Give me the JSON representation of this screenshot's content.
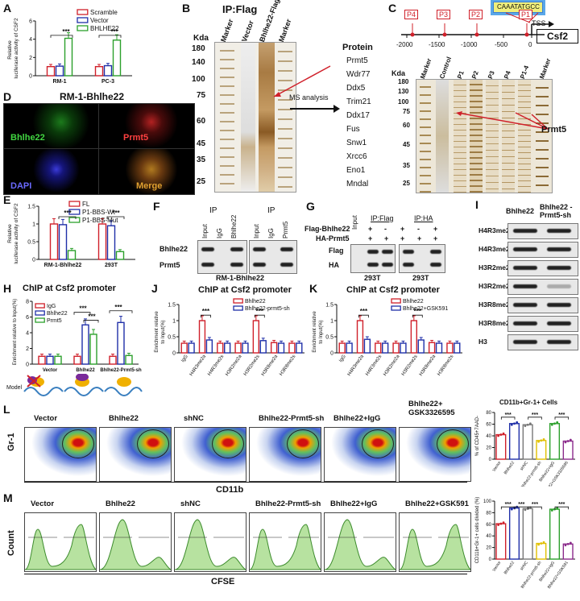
{
  "panels": {
    "A": {
      "label": "A",
      "ylabel": "Relative luciferase activity of CSF2",
      "legend": [
        "Scramble",
        "Vector",
        "BHLHE22"
      ],
      "groups": [
        "RM-1",
        "PC-3"
      ],
      "sig": [
        "***",
        "***"
      ]
    },
    "B": {
      "label": "B",
      "title": "IP:Flag",
      "kda": "Kda",
      "markers": [
        "180",
        "140",
        "100",
        "75",
        "60",
        "45",
        "35",
        "25"
      ],
      "lanes": [
        "Marker",
        "Vector",
        "Bhlhe22-Flag",
        "Marker"
      ],
      "ms": "MS analysis",
      "protein_header": "Protein",
      "proteins": [
        "Prmt5",
        "Wdr77",
        "Ddx5",
        "Trim21",
        "Ddx17",
        "Fus",
        "Snw1",
        "Xrcc6",
        "Eno1",
        "Mndal"
      ]
    },
    "C": {
      "label": "C",
      "motif": "CAAATATGCC",
      "tss": "TSS",
      "gene": "Csf2",
      "promoters": [
        "P4",
        "P3",
        "P2",
        "P1"
      ],
      "axis": [
        "-2000",
        "-1500",
        "-1000",
        "-500",
        "0"
      ],
      "kda": "Kda",
      "lanes": [
        "Marker",
        "Control",
        "P1",
        "P2",
        "P3",
        "P4",
        "P1-4",
        "Marker"
      ],
      "markers": [
        "180",
        "130",
        "100",
        "75",
        "60",
        "45",
        "35",
        "25"
      ],
      "arrow_label": "Prmt5"
    },
    "D": {
      "label": "D",
      "title": "RM-1-Bhlhe22",
      "quads": [
        "Bhlhe22",
        "Prmt5",
        "DAPI",
        "Merge"
      ]
    },
    "E": {
      "label": "E",
      "ylabel": "Relative luciferase activity of CSF2",
      "legend": [
        "FL",
        "P1-BBS-Wt",
        "P1-BBS-Mut"
      ],
      "groups": [
        "RM-1-Bhlhe22",
        "293T"
      ],
      "sig": [
        "***",
        "***"
      ]
    },
    "F": {
      "label": "F",
      "ip": [
        "IP",
        "IP"
      ],
      "lanes": [
        "Input",
        "IgG",
        "Bhlhe22",
        "Input",
        "IgG",
        "Prmt5"
      ],
      "rows": [
        "Bhlhe22",
        "Prmt5"
      ],
      "caption": "RM-1-Bhlhe22"
    },
    "G": {
      "label": "G",
      "rows": [
        "Flag-Bhlhe22",
        "HA-Prmt5",
        "Flag",
        "HA"
      ],
      "ip": [
        "Input",
        "IP:Flag",
        "IP:HA"
      ],
      "signs": [
        "+",
        "+",
        "-",
        "+",
        "+",
        "+",
        "+",
        "+",
        "+"
      ],
      "caption": [
        "293T",
        "293T"
      ]
    },
    "H": {
      "label": "H",
      "title": "ChIP at Csf2 promoter",
      "ylabel": "Enrichment relative to Input(%)",
      "legend": [
        "IgG",
        "Bhlhe22",
        "Prmt5"
      ],
      "groups": [
        "Vector",
        "Bhlhe22",
        "Bhlhe22-Prmt5-sh"
      ],
      "model": "Model"
    },
    "I": {
      "label": "I",
      "cols": [
        "Bhlhe22",
        "Bhlhe22 -Prmt5-sh"
      ],
      "rows": [
        "H4R3me2a",
        "H4R3me2s",
        "H3R2me2a",
        "H3R2me2s",
        "H3R8me2a",
        "H3R8me2s",
        "H3"
      ]
    },
    "J": {
      "label": "J",
      "title": "ChIP at Csf2 promoter",
      "ylabel": "Enrichment relative to Input(%)",
      "legend": [
        "Bhlhe22",
        "Bhlhe22-prmt5-sh"
      ],
      "cats": [
        "IgG",
        "H4R3me2a",
        "H4R3me2s",
        "H3R2me2a",
        "H3R2me2s",
        "H3R8me2a",
        "H3R8me2s"
      ],
      "sig": [
        "***",
        "***"
      ]
    },
    "K": {
      "label": "K",
      "title": "ChIP at Csf2 promoter",
      "ylabel": "Enrichment relative to Input(%)",
      "legend": [
        "Bhlhe22",
        "Bhlhe22+GSK591"
      ],
      "cats": [
        "IgG",
        "H4R3me2a",
        "H4R3me2s",
        "H3R2me2a",
        "H3R2me2s",
        "H3R8me2a",
        "H3R8me2s"
      ],
      "sig": [
        "***",
        "***"
      ]
    },
    "L": {
      "label": "L",
      "yaxis": "Gr-1",
      "xaxis": "CD11b",
      "plots": [
        "Vector",
        "Bhlhe22",
        "shNC",
        "Bhlhe22-Prmt5-sh",
        "Bhlhe22+IgG",
        "Bhlhe22+ GSK3326595"
      ],
      "bar_title": "CD11b+Gr-1+ Cells",
      "bar_ylabel": "% of CD45+7AAD-",
      "bar_cats": [
        "Vector",
        "Bhlhe22",
        "shNC",
        "Bhlhe22-prmt5-sh",
        "Bhlhe22+IgG",
        "Bhlhe22+GSK3326595"
      ],
      "sig": [
        "***",
        "***",
        "***"
      ]
    },
    "M": {
      "label": "M",
      "yaxis": "Count",
      "xaxis": "CFSE",
      "plots": [
        "Vector",
        "Bhlhe22",
        "shNC",
        "Bhlhe22-Prmt5-sh",
        "Bhlhe22+IgG",
        "Bhlhe22+GSK591"
      ],
      "bar_ylabel": "CD11b+Gr-1+ cells divided (%)",
      "bar_cats": [
        "Vector",
        "Bhlhe22",
        "shNC",
        "Bhlhe22-prmt5-sh",
        "Bhlhe22+IgG",
        "Bhlhe22+GSK591"
      ],
      "sig": [
        "***",
        "***",
        "***",
        "***"
      ]
    }
  },
  "chart_data": [
    {
      "type": "bar",
      "name": "A",
      "categories": [
        "RM-1",
        "PC-3"
      ],
      "ylim": [
        0,
        6
      ],
      "yticks": [
        0,
        2,
        4,
        6
      ],
      "series": [
        {
          "name": "Scramble",
          "values": [
            1.0,
            1.0
          ],
          "color": "#d0202a"
        },
        {
          "name": "Vector",
          "values": [
            1.05,
            1.1
          ],
          "color": "#1f2fa8"
        },
        {
          "name": "BHLHE22",
          "values": [
            4.1,
            3.9
          ],
          "color": "#2ca02c"
        }
      ]
    },
    {
      "type": "bar",
      "name": "E",
      "categories": [
        "RM-1-Bhlhe22",
        "293T"
      ],
      "ylim": [
        0,
        1.5
      ],
      "yticks": [
        0.0,
        0.5,
        1.0,
        1.5
      ],
      "series": [
        {
          "name": "FL",
          "values": [
            1.0,
            1.0
          ],
          "color": "#d0202a"
        },
        {
          "name": "P1-BBS-Wt",
          "values": [
            0.98,
            0.95
          ],
          "color": "#1f2fa8"
        },
        {
          "name": "P1-BBS-Mut",
          "values": [
            0.25,
            0.22
          ],
          "color": "#2ca02c"
        }
      ]
    },
    {
      "type": "bar",
      "name": "H",
      "categories": [
        "Vector",
        "Bhlhe22",
        "Bhlhe22-Prmt5-sh"
      ],
      "ylim": [
        0,
        8
      ],
      "yticks": [
        0,
        2,
        4,
        6,
        8
      ],
      "series": [
        {
          "name": "IgG",
          "values": [
            1.0,
            1.0,
            1.0
          ],
          "color": "#d0202a"
        },
        {
          "name": "Bhlhe22",
          "values": [
            1.0,
            5.0,
            5.3
          ],
          "color": "#1f2fa8"
        },
        {
          "name": "Prmt5",
          "values": [
            1.0,
            3.8,
            1.1
          ],
          "color": "#2ca02c"
        }
      ]
    },
    {
      "type": "bar",
      "name": "J",
      "categories": [
        "IgG",
        "H4R3me2a",
        "H4R3me2s",
        "H3R2me2a",
        "H3R2me2s",
        "H3R8me2a",
        "H3R8me2s"
      ],
      "ylim": [
        0,
        1.5
      ],
      "yticks": [
        0.0,
        0.5,
        1.0,
        1.5
      ],
      "series": [
        {
          "name": "Bhlhe22",
          "values": [
            0.3,
            1.0,
            0.3,
            0.3,
            1.0,
            0.32,
            0.3
          ],
          "color": "#d0202a"
        },
        {
          "name": "Bhlhe22-prmt5-sh",
          "values": [
            0.3,
            0.4,
            0.3,
            0.3,
            0.38,
            0.3,
            0.3
          ],
          "color": "#1f2fa8"
        }
      ]
    },
    {
      "type": "bar",
      "name": "K",
      "categories": [
        "IgG",
        "H4R3me2a",
        "H4R3me2s",
        "H3R2me2a",
        "H3R2me2s",
        "H3R8me2a",
        "H3R8me2s"
      ],
      "ylim": [
        0,
        1.5
      ],
      "yticks": [
        0.0,
        0.5,
        1.0,
        1.5
      ],
      "series": [
        {
          "name": "Bhlhe22",
          "values": [
            0.3,
            1.0,
            0.3,
            0.3,
            1.0,
            0.32,
            0.3
          ],
          "color": "#d0202a"
        },
        {
          "name": "Bhlhe22+GSK591",
          "values": [
            0.3,
            0.42,
            0.3,
            0.3,
            0.4,
            0.3,
            0.3
          ],
          "color": "#1f2fa8"
        }
      ]
    },
    {
      "type": "bar",
      "name": "L-bar",
      "categories": [
        "Vector",
        "Bhlhe22",
        "shNC",
        "Bhlhe22-prmt5-sh",
        "Bhlhe22+IgG",
        "Bhlhe22+GSK3326595"
      ],
      "ylim": [
        0,
        80
      ],
      "yticks": [
        0,
        20,
        40,
        60,
        80
      ],
      "values": [
        42,
        61,
        59,
        32,
        61,
        31
      ],
      "colors": [
        "#d0202a",
        "#1f2fa8",
        "#777777",
        "#e0c000",
        "#2ca02c",
        "#8b2a8b"
      ]
    },
    {
      "type": "bar",
      "name": "M-bar",
      "categories": [
        "Vector",
        "Bhlhe22",
        "shNC",
        "Bhlhe22-prmt5-sh",
        "Bhlhe22+IgG",
        "Bhlhe22+GSK591"
      ],
      "ylim": [
        0,
        100
      ],
      "yticks": [
        0,
        20,
        40,
        60,
        80,
        100
      ],
      "values": [
        61,
        88,
        87,
        27,
        86,
        26
      ],
      "colors": [
        "#d0202a",
        "#1f2fa8",
        "#777777",
        "#e0c000",
        "#2ca02c",
        "#8b2a8b"
      ]
    }
  ]
}
